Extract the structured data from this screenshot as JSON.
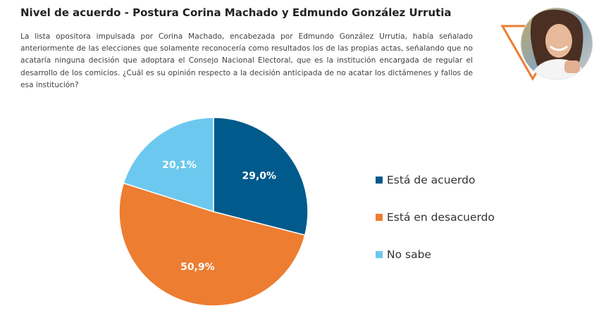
{
  "header": {
    "title": "Nivel de acuerdo - Postura Corina Machado y Edmundo González Urrutia",
    "description": "La lista opositora impulsada por Corina Machado, encabezada por Edmundo González Urrutia, había señalado anteriormente de las elecciones que solamente reconocería como resultados los de las propias actas, señalando que no acataría ninguna decisión que adoptara el Consejo Nacional Electoral, que es la institución encargada de regular el desarrollo de los comicios. ¿Cuál es su opinión respecto a la decisión anticipada de no acatar los dictámenes y fallos de esa institución?"
  },
  "decoration": {
    "triangle_color": "#ED7D31",
    "photo_icon": "person-portrait-icon"
  },
  "chart_data": {
    "type": "pie",
    "title": "",
    "categories": [
      "Está de acuerdo",
      "Está en desacuerdo",
      "No sabe"
    ],
    "values": [
      29.0,
      50.9,
      20.1
    ],
    "data_labels": [
      "29,0%",
      "50,9%",
      "20,1%"
    ],
    "colors": [
      "#005A8C",
      "#ED7D31",
      "#6CC8EE"
    ],
    "start_angle_deg": 0,
    "direction": "clockwise",
    "legend_position": "right"
  },
  "legend": {
    "items": [
      {
        "label": "Está de acuerdo",
        "color": "#005A8C"
      },
      {
        "label": "Está en desacuerdo",
        "color": "#ED7D31"
      },
      {
        "label": "No sabe",
        "color": "#6CC8EE"
      }
    ]
  }
}
